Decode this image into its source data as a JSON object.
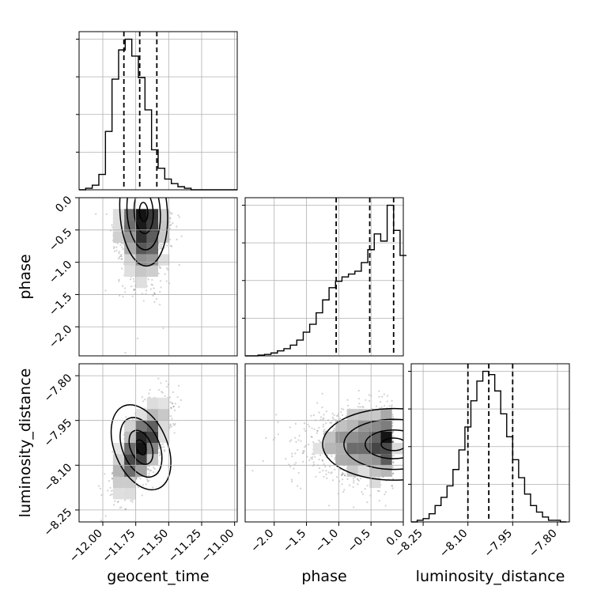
{
  "chart_data": {
    "type": "corner",
    "parameters": [
      "geocent_time",
      "phase",
      "luminosity_distance"
    ],
    "axis_labels": {
      "geocent_time": "geocent_time",
      "phase": "phase",
      "luminosity_distance": "luminosity_distance"
    },
    "ranges": {
      "geocent_time": [
        -12.18,
        -10.98
      ],
      "phase": [
        -2.45,
        0.0
      ],
      "luminosity_distance": [
        -8.29,
        -7.76
      ]
    },
    "ticks": {
      "geocent_time": [
        {
          "v": -12.0,
          "label": "−12.00"
        },
        {
          "v": -11.75,
          "label": "−11.75"
        },
        {
          "v": -11.5,
          "label": "−11.50"
        },
        {
          "v": -11.25,
          "label": "−11.25"
        },
        {
          "v": -11.0,
          "label": "−11.00"
        }
      ],
      "phase": [
        {
          "v": -2.0,
          "label": "−2.0"
        },
        {
          "v": -1.5,
          "label": "−1.5"
        },
        {
          "v": -1.0,
          "label": "−1.0"
        },
        {
          "v": -0.5,
          "label": "−0.5"
        },
        {
          "v": 0.0,
          "label": "0.0"
        }
      ],
      "luminosity_distance": [
        {
          "v": -8.25,
          "label": "−8.25"
        },
        {
          "v": -8.1,
          "label": "−8.10"
        },
        {
          "v": -7.95,
          "label": "−7.95"
        },
        {
          "v": -7.8,
          "label": "−7.80"
        }
      ]
    },
    "marginals": {
      "geocent_time": {
        "bin_edges": [
          -12.18,
          -12.13,
          -12.08,
          -12.03,
          -11.98,
          -11.93,
          -11.88,
          -11.83,
          -11.78,
          -11.73,
          -11.68,
          -11.63,
          -11.58,
          -11.53,
          -11.48,
          -11.43,
          -11.38,
          -11.33,
          -11.28,
          -11.23,
          -11.18,
          -11.13,
          -11.08,
          -11.03,
          -10.98
        ],
        "counts": [
          0,
          1,
          3,
          10,
          38,
          72,
          91,
          98,
          87,
          73,
          52,
          26,
          14,
          7,
          4,
          2,
          1,
          0,
          0,
          0,
          0,
          0,
          0,
          0
        ],
        "quantiles": [
          -11.84,
          -11.72,
          -11.59
        ]
      },
      "phase": {
        "bin_edges": [
          -2.45,
          -2.35,
          -2.25,
          -2.15,
          -2.05,
          -1.95,
          -1.85,
          -1.75,
          -1.65,
          -1.55,
          -1.45,
          -1.35,
          -1.25,
          -1.15,
          -1.05,
          -0.95,
          -0.85,
          -0.75,
          -0.65,
          -0.55,
          -0.45,
          -0.35,
          -0.25,
          -0.15,
          -0.05,
          0.05
        ],
        "counts": [
          0,
          0,
          1,
          2,
          4,
          7,
          10,
          15,
          22,
          33,
          44,
          60,
          78,
          95,
          104,
          110,
          114,
          118,
          130,
          148,
          170,
          160,
          210,
          175,
          140
        ],
        "quantiles": [
          -1.04,
          -0.52,
          -0.15
        ]
      },
      "luminosity_distance": {
        "bin_edges": [
          -8.29,
          -8.27,
          -8.25,
          -8.23,
          -8.21,
          -8.19,
          -8.17,
          -8.15,
          -8.13,
          -8.11,
          -8.09,
          -8.07,
          -8.05,
          -8.03,
          -8.01,
          -7.99,
          -7.97,
          -7.95,
          -7.93,
          -7.91,
          -7.89,
          -7.87,
          -7.85,
          -7.83,
          -7.81,
          -7.79,
          -7.77
        ],
        "counts": [
          0,
          1,
          2,
          5,
          10,
          15,
          22,
          32,
          44,
          58,
          74,
          86,
          92,
          90,
          80,
          66,
          52,
          38,
          27,
          17,
          10,
          6,
          3,
          1,
          1,
          0
        ],
        "quantiles": [
          -8.1,
          -8.03,
          -7.95
        ]
      }
    },
    "joints": [
      {
        "x": "geocent_time",
        "y": "phase",
        "mode": [
          -11.69,
          -0.22
        ],
        "sigma": [
          0.09,
          0.42
        ],
        "rho": 0.1,
        "skew": "left"
      },
      {
        "x": "geocent_time",
        "y": "luminosity_distance",
        "mode": [
          -11.71,
          -8.04
        ],
        "sigma": [
          0.1,
          0.075
        ],
        "rho": 0.65
      },
      {
        "x": "phase",
        "y": "luminosity_distance",
        "mode": [
          -0.15,
          -8.03
        ],
        "sigma": [
          0.55,
          0.06
        ],
        "rho": 0.0
      }
    ],
    "grid": true,
    "legend": "none"
  }
}
